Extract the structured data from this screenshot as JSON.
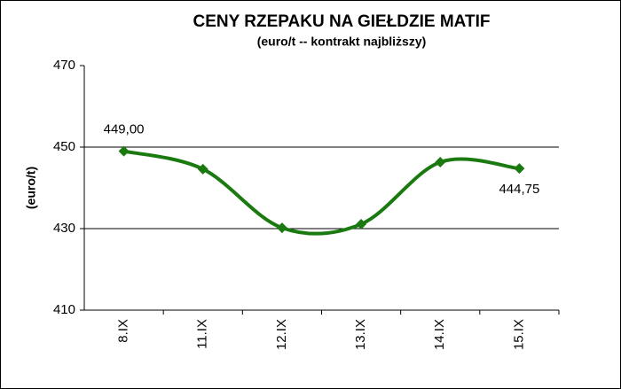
{
  "chart_data": {
    "type": "line",
    "title": "CENY RZEPAKU NA GIEŁDZIE MATIF",
    "subtitle": "(euro/t -- kontrakt najbliższy)",
    "y_label": "(euro/t)",
    "categories": [
      "8.IX",
      "11.IX",
      "12.IX",
      "13.IX",
      "14.IX",
      "15.IX"
    ],
    "series": [
      {
        "name": "MATIF",
        "color": "#1a7a10",
        "values": [
          449.0,
          444.6,
          430.2,
          431.1,
          446.3,
          444.75
        ],
        "value_labels": [
          "449,00",
          null,
          null,
          null,
          null,
          "444,75"
        ]
      }
    ],
    "ylim": [
      410,
      470
    ],
    "yticks": [
      410,
      430,
      450,
      470
    ],
    "grid": true
  }
}
